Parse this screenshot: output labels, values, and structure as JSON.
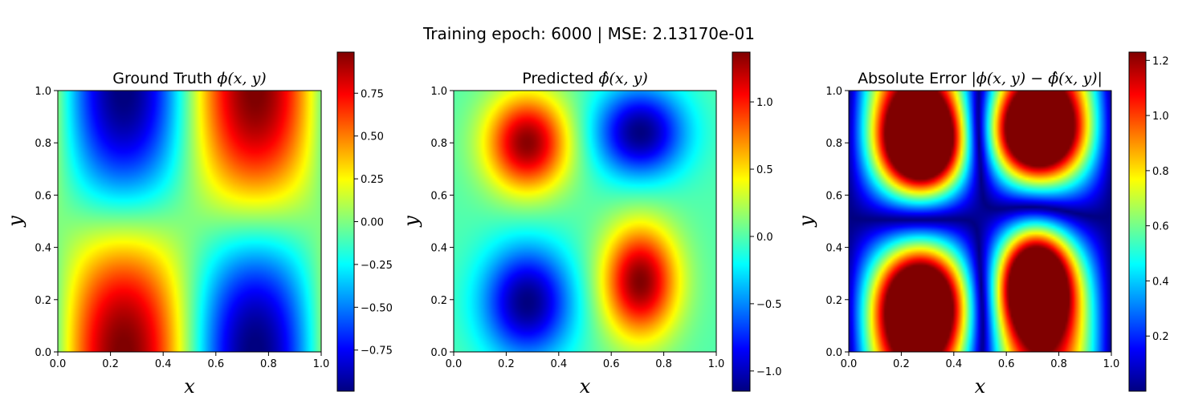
{
  "suptitle": "Training epoch: 6000 | MSE: 2.13170e-01",
  "chart_data": [
    {
      "type": "heatmap",
      "title": "Ground Truth ϕ(x, y)",
      "title_prefix": "Ground Truth ",
      "title_math": "ϕ(x, y)",
      "xlabel": "x",
      "ylabel": "y",
      "xlim": [
        0,
        1
      ],
      "ylim": [
        0,
        1
      ],
      "xticks": [
        "0.0",
        "0.2",
        "0.4",
        "0.6",
        "0.8",
        "1.0"
      ],
      "yticks": [
        "0.0",
        "0.2",
        "0.4",
        "0.6",
        "0.8",
        "1.0"
      ],
      "field": "sin(2πx)·cos(πy)",
      "colorbar": {
        "colormap": "jet",
        "range": [
          -0.99,
          0.99
        ],
        "ticks": [
          -0.75,
          -0.5,
          -0.25,
          0.0,
          0.25,
          0.5,
          0.75
        ],
        "tick_labels": [
          "−0.75",
          "−0.50",
          "−0.25",
          "0.00",
          "0.25",
          "0.50",
          "0.75"
        ]
      }
    },
    {
      "type": "heatmap",
      "title": "Predicted ϕ̂(x, y)",
      "title_prefix": "Predicted ",
      "title_math": "ϕ̂(x, y)",
      "xlabel": "x",
      "ylabel": "y",
      "xlim": [
        0,
        1
      ],
      "ylim": [
        0,
        1
      ],
      "xticks": [
        "0.0",
        "0.2",
        "0.4",
        "0.6",
        "0.8",
        "1.0"
      ],
      "yticks": [
        "0.0",
        "0.2",
        "0.4",
        "0.6",
        "0.8",
        "1.0"
      ],
      "field": "smooth blobs: high near (0.28, 0.80) and (0.71, 0.26); low near (0.28, 0.19) and (0.71, 0.82)",
      "colorbar": {
        "colormap": "jet",
        "range": [
          -1.15,
          1.37
        ],
        "ticks": [
          -1.0,
          -0.5,
          0.0,
          0.5,
          1.0
        ],
        "tick_labels": [
          "−1.0",
          "−0.5",
          "0.0",
          "0.5",
          "1.0"
        ]
      }
    },
    {
      "type": "heatmap",
      "title": "Absolute Error |ϕ(x, y) − ϕ̂(x, y)|",
      "title_prefix": "Absolute Error ",
      "title_math": "|ϕ(x, y) − ϕ̂(x, y)|",
      "xlabel": "x",
      "ylabel": "y",
      "xlim": [
        0,
        1
      ],
      "ylim": [
        0,
        1
      ],
      "xticks": [
        "0.0",
        "0.2",
        "0.4",
        "0.6",
        "0.8",
        "1.0"
      ],
      "yticks": [
        "0.0",
        "0.2",
        "0.4",
        "0.6",
        "0.8",
        "1.0"
      ],
      "field": "|ground truth − predicted|",
      "colorbar": {
        "colormap": "jet",
        "range": [
          0.0,
          1.23
        ],
        "ticks": [
          0.2,
          0.4,
          0.6,
          0.8,
          1.0,
          1.2
        ],
        "tick_labels": [
          "0.2",
          "0.4",
          "0.6",
          "0.8",
          "1.0",
          "1.2"
        ]
      }
    }
  ]
}
